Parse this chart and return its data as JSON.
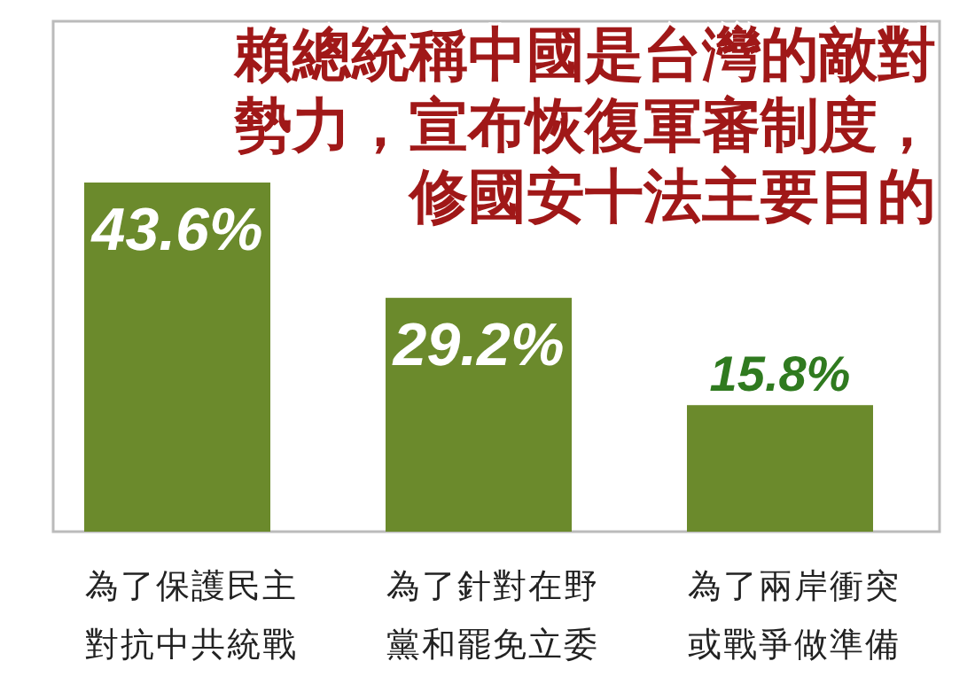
{
  "chart_data": {
    "type": "bar",
    "title": "賴總統稱中國是台灣的敵對勢力，宣布恢復軍審制度，修國安十法主要目的",
    "categories": [
      "為了保護民主對抗中共統戰",
      "為了針對在野黨和罷免立委",
      "為了兩岸衝突或戰爭做準備"
    ],
    "values": [
      43.6,
      29.2,
      15.8
    ],
    "color": "#6b8a2c",
    "value_labels": [
      "43.6%",
      "29.2%",
      "15.8%"
    ]
  }
}
